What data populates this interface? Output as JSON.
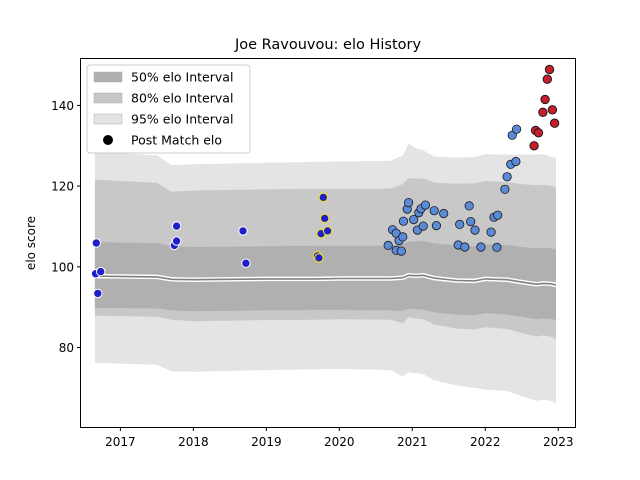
{
  "chart_data": {
    "type": "scatter",
    "title": "Joe Ravouvou: elo History",
    "xlabel": "",
    "ylabel": "elo score",
    "xlim": [
      2016.46,
      2023.23
    ],
    "ylim": [
      60.3,
      151.5
    ],
    "xticks": [
      "2017",
      "2018",
      "2019",
      "2020",
      "2021",
      "2022",
      "2023"
    ],
    "yticks": [
      80,
      100,
      120,
      140
    ],
    "grid": false,
    "legend_position": "top-left",
    "legend": [
      {
        "label": "50% elo Interval",
        "kind": "band",
        "color": "#b0b0b0"
      },
      {
        "label": "80% elo Interval",
        "kind": "band",
        "color": "#c8c8c8"
      },
      {
        "label": "95% elo Interval",
        "kind": "band",
        "color": "#e4e4e4"
      },
      {
        "label": "Post Match elo",
        "kind": "marker",
        "color": "#000000"
      }
    ],
    "colors": {
      "band50": "#b0b0b0",
      "band80": "#c8c8c8",
      "band95": "#e4e4e4",
      "median_line": "#808080",
      "median_halo": "#ffffff",
      "blue": "#1f1fcc",
      "steel": "#5b8bd6",
      "red": "#c81e2a",
      "edge": "#1a1a1a",
      "yellow_edge": "#f0e020"
    },
    "bands": {
      "x": [
        2016.65,
        2017.5,
        2017.7,
        2018.0,
        2019.0,
        2019.7,
        2020.0,
        2020.7,
        2020.87,
        2020.95,
        2021.05,
        2021.15,
        2021.3,
        2021.6,
        2021.85,
        2022.0,
        2022.3,
        2022.5,
        2022.7,
        2022.8,
        2022.9,
        2022.97
      ],
      "median": [
        97.7,
        97.5,
        96.9,
        96.8,
        97.0,
        97.0,
        97.1,
        97.1,
        97.3,
        97.9,
        97.8,
        97.9,
        97.2,
        96.6,
        96.5,
        97.0,
        96.8,
        96.2,
        95.7,
        95.9,
        95.8,
        95.5
      ],
      "q50_lo": [
        89.8,
        89.7,
        89.2,
        89.0,
        89.2,
        89.3,
        89.3,
        89.2,
        89.0,
        89.6,
        89.5,
        89.4,
        88.7,
        88.1,
        88.0,
        88.5,
        88.2,
        87.6,
        87.0,
        87.2,
        87.1,
        86.8
      ],
      "q50_hi": [
        106.1,
        105.9,
        105.2,
        104.9,
        105.1,
        105.2,
        105.2,
        105.2,
        105.6,
        106.3,
        106.2,
        106.4,
        105.8,
        105.3,
        105.1,
        105.6,
        105.4,
        104.9,
        104.6,
        104.7,
        104.6,
        104.3
      ],
      "q80_lo": [
        87.9,
        87.6,
        86.9,
        86.5,
        86.8,
        86.9,
        87.0,
        86.9,
        86.0,
        87.5,
        87.2,
        87.0,
        85.7,
        84.7,
        84.5,
        85.0,
        84.6,
        83.6,
        82.7,
        83.0,
        82.7,
        82.0
      ],
      "q80_hi": [
        121.6,
        120.8,
        118.6,
        118.9,
        119.2,
        119.3,
        119.3,
        119.4,
        120.5,
        122.0,
        121.8,
        121.9,
        120.9,
        120.6,
        120.7,
        121.3,
        121.0,
        120.5,
        120.2,
        120.3,
        120.1,
        119.6
      ],
      "q95_lo": [
        76.2,
        75.7,
        74.1,
        74.0,
        74.4,
        74.6,
        74.7,
        74.4,
        72.8,
        73.9,
        73.6,
        73.4,
        71.9,
        70.6,
        70.0,
        69.6,
        69.2,
        67.9,
        66.8,
        67.1,
        66.8,
        66.2
      ],
      "q95_hi": [
        128.6,
        127.6,
        125.2,
        125.4,
        125.8,
        126.0,
        126.1,
        126.3,
        127.6,
        130.5,
        129.4,
        128.9,
        127.3,
        127.1,
        127.2,
        127.9,
        127.8,
        127.8,
        127.8,
        127.9,
        127.3,
        127.0
      ]
    },
    "series": [
      {
        "style": "blue",
        "points": [
          [
            2016.66,
            98.3
          ],
          [
            2016.67,
            105.9
          ],
          [
            2016.69,
            93.4
          ],
          [
            2016.73,
            98.8
          ],
          [
            2017.74,
            105.3
          ],
          [
            2017.77,
            106.4
          ],
          [
            2017.77,
            110.1
          ],
          [
            2018.68,
            108.9
          ],
          [
            2018.72,
            100.9
          ],
          [
            2019.7,
            102.7
          ],
          [
            2019.75,
            108.2
          ],
          [
            2019.78,
            117.2
          ],
          [
            2019.8,
            112.0
          ],
          [
            2019.84,
            108.9
          ],
          [
            2019.72,
            102.2
          ]
        ]
      },
      {
        "style": "steel",
        "points": [
          [
            2020.67,
            105.3
          ],
          [
            2020.73,
            109.2
          ],
          [
            2020.78,
            108.3
          ],
          [
            2020.78,
            104.1
          ],
          [
            2020.82,
            106.5
          ],
          [
            2020.85,
            103.9
          ],
          [
            2020.87,
            107.4
          ],
          [
            2020.88,
            111.3
          ],
          [
            2020.93,
            114.3
          ],
          [
            2020.95,
            115.9
          ],
          [
            2021.02,
            111.7
          ],
          [
            2021.07,
            109.1
          ],
          [
            2021.09,
            113.4
          ],
          [
            2021.12,
            114.4
          ],
          [
            2021.15,
            110.1
          ],
          [
            2021.18,
            115.3
          ],
          [
            2021.3,
            113.9
          ],
          [
            2021.33,
            110.2
          ],
          [
            2021.43,
            113.2
          ],
          [
            2021.63,
            105.4
          ],
          [
            2021.65,
            110.5
          ],
          [
            2021.72,
            104.9
          ],
          [
            2021.78,
            115.1
          ],
          [
            2021.8,
            111.2
          ],
          [
            2021.86,
            109.1
          ],
          [
            2021.94,
            104.9
          ],
          [
            2022.08,
            108.6
          ],
          [
            2022.12,
            112.3
          ],
          [
            2022.16,
            104.8
          ],
          [
            2022.17,
            112.8
          ],
          [
            2022.27,
            119.2
          ],
          [
            2022.3,
            122.3
          ],
          [
            2022.35,
            125.4
          ],
          [
            2022.37,
            132.6
          ],
          [
            2022.42,
            126.1
          ],
          [
            2022.43,
            134.1
          ]
        ]
      },
      {
        "style": "red",
        "points": [
          [
            2022.67,
            130.0
          ],
          [
            2022.69,
            133.8
          ],
          [
            2022.73,
            133.2
          ],
          [
            2022.79,
            138.3
          ],
          [
            2022.82,
            141.5
          ],
          [
            2022.85,
            146.5
          ],
          [
            2022.88,
            148.9
          ],
          [
            2022.92,
            138.9
          ],
          [
            2022.95,
            135.6
          ]
        ]
      }
    ]
  }
}
